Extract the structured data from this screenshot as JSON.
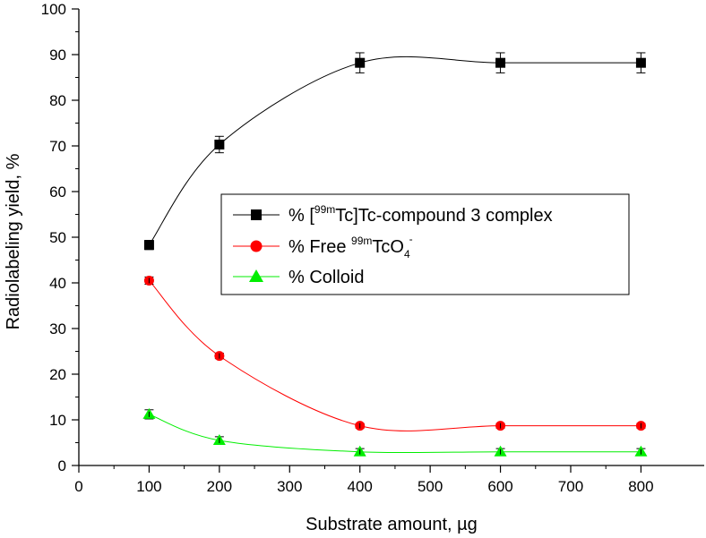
{
  "chart_data": {
    "type": "line",
    "title": "",
    "xlabel": "Substrate amount, µg",
    "ylabel": "Radiolabeling yield, %",
    "xlim": [
      0,
      890
    ],
    "ylim": [
      0,
      100
    ],
    "xticks": [
      0,
      100,
      200,
      300,
      400,
      500,
      600,
      700,
      800
    ],
    "yticks": [
      0,
      10,
      20,
      30,
      40,
      50,
      60,
      70,
      80,
      90,
      100
    ],
    "x": [
      100,
      200,
      400,
      600,
      800
    ],
    "series": [
      {
        "name": "% [99mTc]Tc-compound 3 complex",
        "label_parts": [
          "% [",
          "99m",
          "Tc]Tc-compound 3 complex"
        ],
        "marker": "square",
        "color": "#000000",
        "values": [
          48.3,
          70.3,
          88.2,
          88.2,
          88.2
        ],
        "errors": [
          1.0,
          1.8,
          2.2,
          2.2,
          2.2
        ]
      },
      {
        "name": "% Free 99mTcO4-",
        "label_parts": [
          "% Free ",
          "99m",
          "TcO",
          "4",
          "-"
        ],
        "marker": "circle",
        "color": "#ff0000",
        "values": [
          40.5,
          24.0,
          8.7,
          8.7,
          8.7
        ],
        "errors": [
          0.8,
          0.6,
          0.5,
          0.5,
          0.5
        ]
      },
      {
        "name": "% Colloid",
        "label_parts": [
          "% Colloid"
        ],
        "marker": "triangle",
        "color": "#00ee00",
        "values": [
          11.2,
          5.5,
          3.0,
          3.0,
          3.0
        ],
        "errors": [
          1.0,
          0.8,
          0.7,
          0.7,
          0.7
        ]
      }
    ],
    "legend": {
      "position": "center-right"
    }
  }
}
